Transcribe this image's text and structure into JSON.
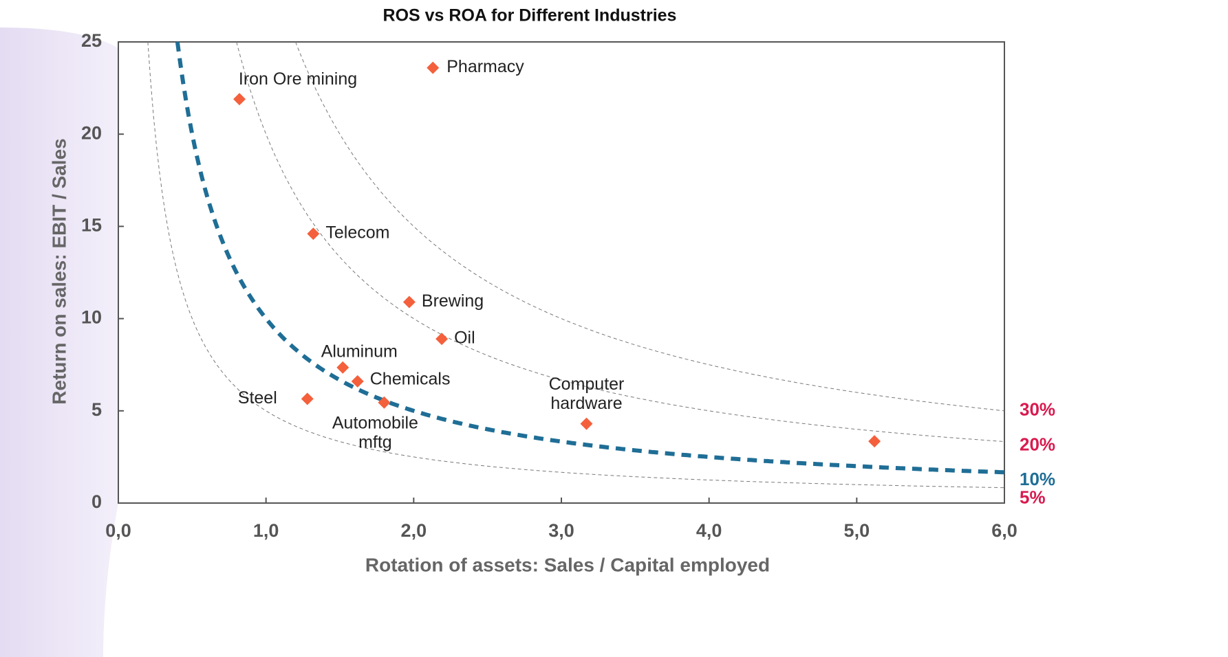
{
  "chart_data": {
    "type": "scatter",
    "title": "ROS vs ROA for Different Industries",
    "xlabel": "Rotation of assets: Sales / Capital employed",
    "ylabel": "Return on sales: EBIT / Sales",
    "xlim": [
      0,
      6
    ],
    "ylim": [
      0,
      25
    ],
    "xticks": [
      {
        "value": 0,
        "label": "0,0"
      },
      {
        "value": 1,
        "label": "1,0"
      },
      {
        "value": 2,
        "label": "2,0"
      },
      {
        "value": 3,
        "label": "3,0"
      },
      {
        "value": 4,
        "label": "4,0"
      },
      {
        "value": 5,
        "label": "5,0"
      },
      {
        "value": 6,
        "label": "6,0"
      }
    ],
    "yticks": [
      0,
      5,
      10,
      15,
      20,
      25
    ],
    "color": "#f4603c",
    "x": [
      0.82,
      2.13,
      1.32,
      1.97,
      2.19,
      1.52,
      1.62,
      1.28,
      1.8,
      3.17,
      5.12
    ],
    "values": [
      21.9,
      23.6,
      14.6,
      10.9,
      8.9,
      7.35,
      6.6,
      5.65,
      5.45,
      4.3,
      3.35
    ],
    "labels": [
      [
        "Iron Ore mining"
      ],
      [
        "Pharmacy"
      ],
      [
        "Telecom"
      ],
      [
        "Brewing"
      ],
      [
        "Oil"
      ],
      [
        "Aluminum"
      ],
      [
        "Chemicals"
      ],
      [
        "Steel"
      ],
      [
        "Automobile",
        "mftg"
      ],
      [
        "Computer",
        "hardware"
      ],
      null
    ],
    "curves": [
      {
        "value": 30,
        "label": "30%",
        "color": "#d81b4f",
        "line_color": "#777",
        "thick": false
      },
      {
        "value": 20,
        "label": "20%",
        "color": "#d81b4f",
        "line_color": "#777",
        "thick": false
      },
      {
        "value": 10,
        "label": "10%",
        "color": "#1f6e96",
        "line_color": "#1f6e96",
        "thick": true
      },
      {
        "value": 5,
        "label": "5%",
        "color": "#d81b4f",
        "line_color": "#777",
        "thick": false
      }
    ]
  }
}
